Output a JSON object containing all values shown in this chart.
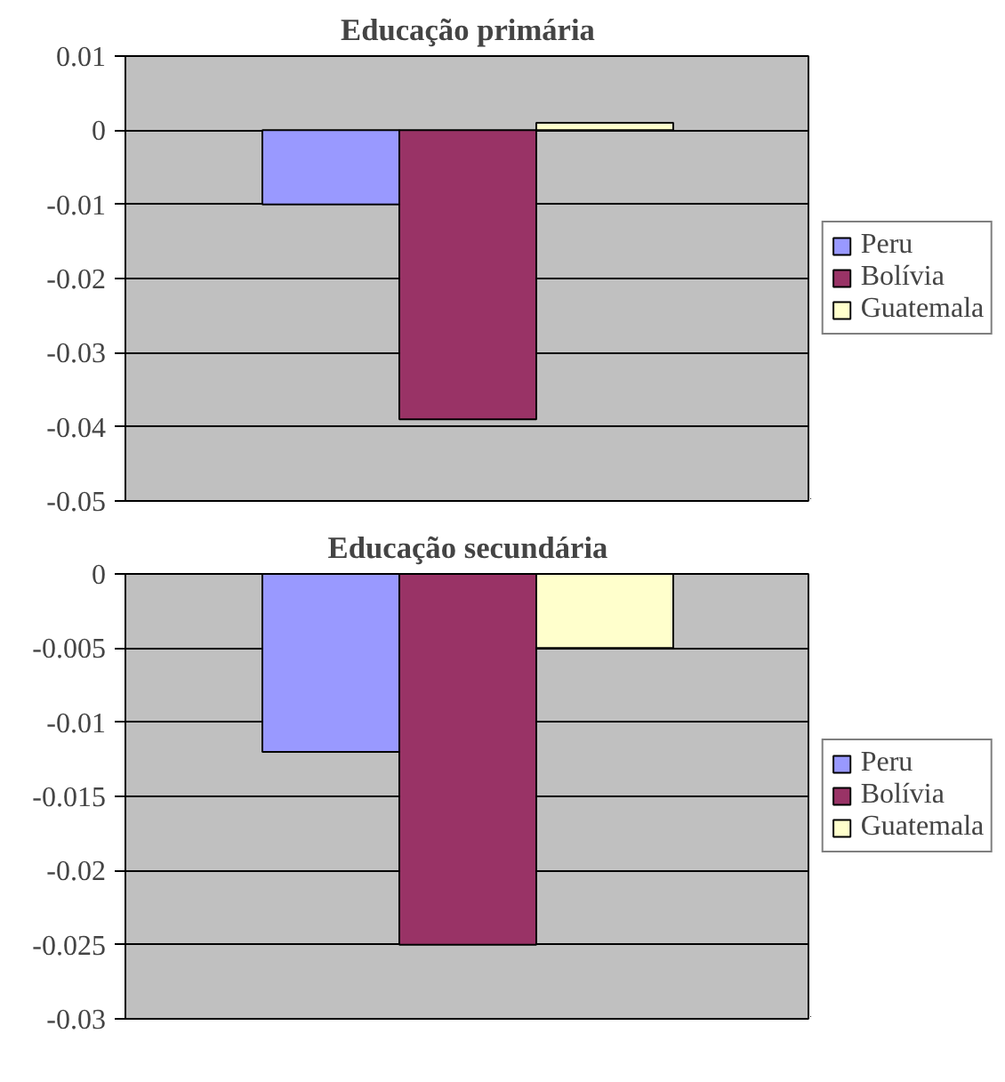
{
  "chart_data": [
    {
      "type": "bar",
      "title": "Educação primária",
      "categories": [
        null
      ],
      "series": [
        {
          "name": "Peru",
          "color": "#9999ff",
          "values": [
            -0.01
          ]
        },
        {
          "name": "Bolívia",
          "color": "#993366",
          "values": [
            -0.039
          ]
        },
        {
          "name": "Guatemala",
          "color": "#ffffcc",
          "values": [
            0.001
          ]
        }
      ],
      "ylim": [
        -0.05,
        0.01
      ],
      "yticks": [
        -0.05,
        -0.04,
        -0.03,
        -0.02,
        -0.01,
        0,
        0.01
      ],
      "grid": "y",
      "legend": "right",
      "tick_labels": "y"
    },
    {
      "type": "bar",
      "title": "Educação secundária",
      "categories": [
        null
      ],
      "series": [
        {
          "name": "Peru",
          "color": "#9999ff",
          "values": [
            -0.012
          ]
        },
        {
          "name": "Bolívia",
          "color": "#993366",
          "values": [
            -0.025
          ]
        },
        {
          "name": "Guatemala",
          "color": "#ffffcc",
          "values": [
            -0.005
          ]
        }
      ],
      "ylim": [
        -0.03,
        0
      ],
      "yticks": [
        -0.03,
        -0.025,
        -0.02,
        -0.015,
        -0.01,
        -0.005,
        0
      ],
      "grid": "y",
      "legend": "right",
      "tick_labels": "y"
    }
  ]
}
